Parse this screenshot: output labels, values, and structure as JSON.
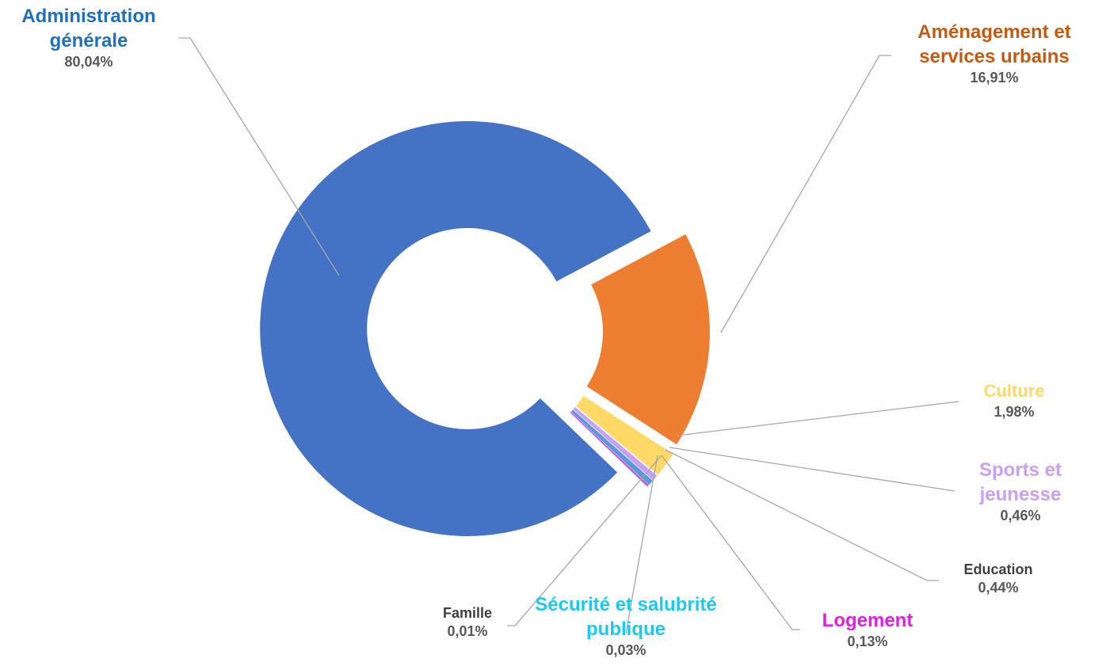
{
  "chart_data": {
    "type": "donut",
    "categories": [
      "Aménagement et services urbains",
      "Culture",
      "Sports et jeunesse",
      "Education",
      "Logement",
      "Sécurité et salubrité publique",
      "Famille",
      "Administration générale"
    ],
    "values": [
      16.91,
      1.98,
      0.46,
      0.44,
      0.13,
      0.03,
      0.01,
      80.04
    ],
    "value_labels": [
      "16,91%",
      "1,98%",
      "0,46%",
      "0,44%",
      "0,13%",
      "0,03%",
      "0,01%",
      "80,04%"
    ],
    "colors": [
      "#ed7d31",
      "#ffd966",
      "#c9a0f5",
      "#5b9bd5",
      "#e83ae8",
      "#22c7ee",
      "#a5a5a5",
      "#4472c4"
    ],
    "label_colors": [
      "#c55a11",
      "#ffd966",
      "#c9a0f5",
      "#404040",
      "#e020e0",
      "#1ec8f0",
      "#404040",
      "#1f6fbf"
    ]
  }
}
